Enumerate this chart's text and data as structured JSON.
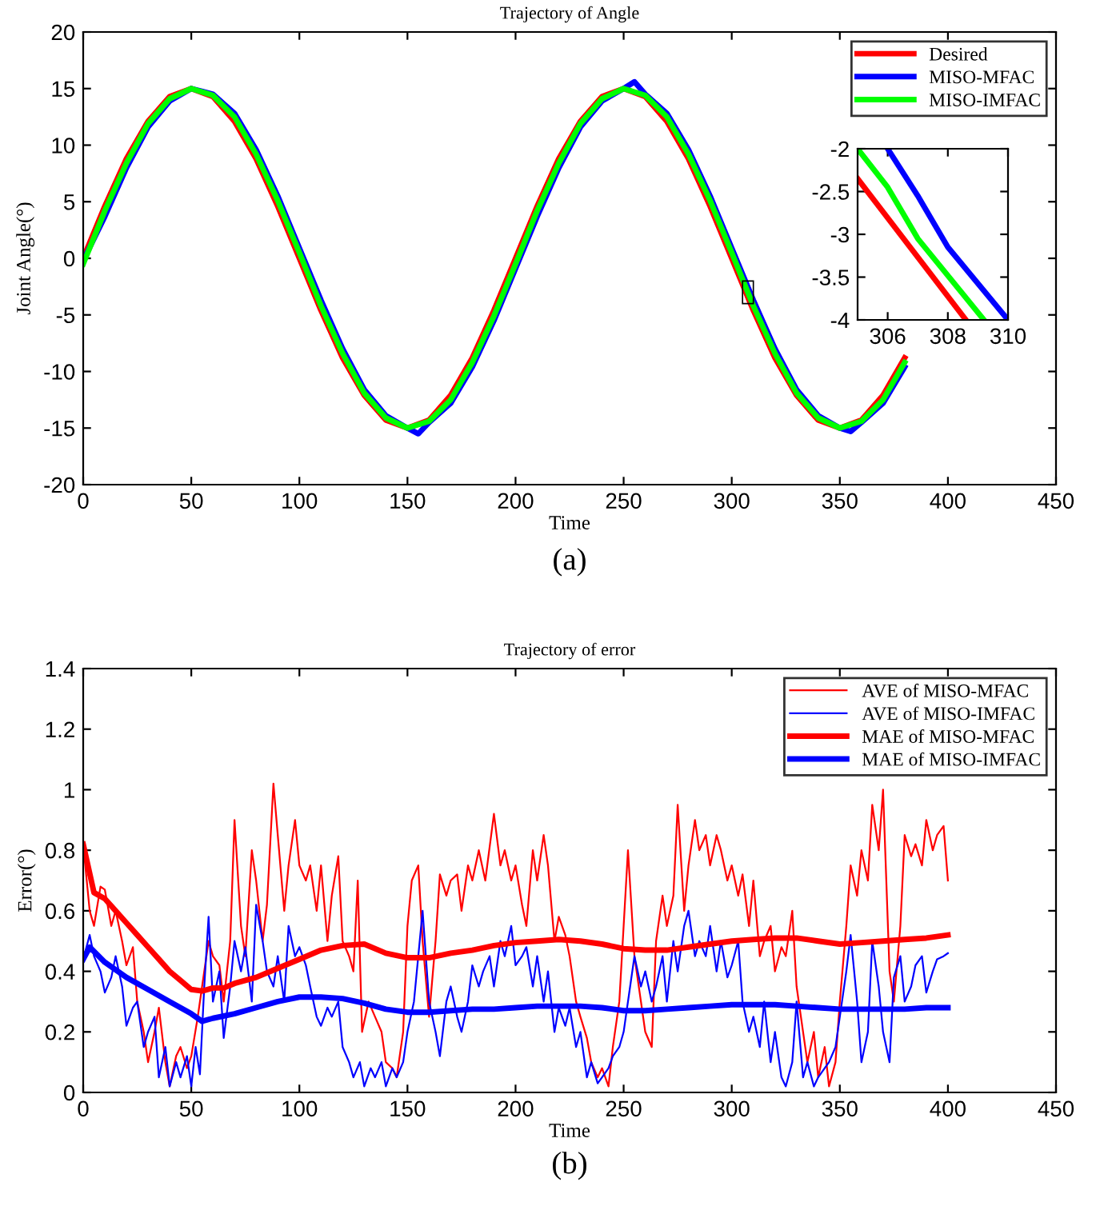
{
  "chart_data": [
    {
      "type": "line",
      "title": "Trajectory of Angle",
      "xlabel": "Time",
      "ylabel": "Joint Angle(°)",
      "annotations": [
        "(a)"
      ],
      "xlim": [
        0,
        450
      ],
      "ylim": [
        -20,
        20
      ],
      "xticks": [
        0,
        50,
        100,
        150,
        200,
        250,
        300,
        350,
        400,
        450
      ],
      "yticks": [
        -20,
        -15,
        -10,
        -5,
        0,
        5,
        10,
        15,
        20
      ],
      "grid": false,
      "legend": "top right",
      "line_style": "solid",
      "marker": "none",
      "series": [
        {
          "name": "Desired",
          "color": "#ff0000",
          "x": [
            0,
            10,
            20,
            30,
            40,
            50,
            60,
            70,
            80,
            90,
            100,
            110,
            120,
            130,
            140,
            150,
            160,
            170,
            180,
            190,
            200,
            210,
            220,
            230,
            240,
            250,
            260,
            270,
            280,
            290,
            300,
            310,
            320,
            330,
            340,
            350,
            360,
            370,
            380
          ],
          "values": [
            0,
            4.6,
            8.8,
            12.1,
            14.3,
            15,
            14.3,
            12.1,
            8.8,
            4.6,
            0,
            -4.6,
            -8.8,
            -12.1,
            -14.3,
            -15,
            -14.3,
            -12.1,
            -8.8,
            -4.6,
            0,
            4.6,
            8.8,
            12.1,
            14.3,
            15,
            14.3,
            12.1,
            8.8,
            4.6,
            0,
            -4.6,
            -8.8,
            -12.1,
            -14.3,
            -15,
            -14.3,
            -12.1,
            -8.8
          ]
        },
        {
          "name": "MISO-MFAC",
          "color": "#0000ff",
          "x": [
            0,
            10,
            20,
            30,
            40,
            50,
            60,
            70,
            80,
            90,
            100,
            110,
            120,
            130,
            140,
            150,
            155,
            160,
            170,
            180,
            190,
            200,
            210,
            220,
            230,
            240,
            250,
            255,
            260,
            270,
            280,
            290,
            300,
            310,
            320,
            330,
            340,
            350,
            355,
            360,
            370,
            380
          ],
          "values": [
            -0.2,
            3.7,
            8.0,
            11.6,
            13.9,
            15.0,
            14.5,
            12.8,
            9.6,
            5.5,
            0.9,
            -3.7,
            -8.0,
            -11.6,
            -13.9,
            -15.0,
            -15.5,
            -14.5,
            -12.8,
            -9.6,
            -5.5,
            -0.9,
            3.7,
            8.0,
            11.6,
            13.9,
            15.0,
            15.6,
            14.5,
            12.8,
            9.6,
            5.5,
            0.9,
            -3.7,
            -8.0,
            -11.6,
            -13.9,
            -15.0,
            -15.3,
            -14.5,
            -12.8,
            -9.6
          ]
        },
        {
          "name": "MISO-IMFAC",
          "color": "#00ff00",
          "x": [
            0,
            10,
            20,
            30,
            40,
            50,
            60,
            70,
            80,
            90,
            100,
            110,
            120,
            130,
            140,
            150,
            160,
            170,
            180,
            190,
            200,
            210,
            220,
            230,
            240,
            250,
            260,
            270,
            280,
            290,
            300,
            310,
            320,
            330,
            340,
            350,
            360,
            370,
            380
          ],
          "values": [
            -0.5,
            4.2,
            8.4,
            11.9,
            14.1,
            15.0,
            14.4,
            12.5,
            9.2,
            5.1,
            0.5,
            -4.2,
            -8.4,
            -11.9,
            -14.1,
            -15.0,
            -14.4,
            -12.5,
            -9.2,
            -5.1,
            -0.5,
            4.2,
            8.4,
            11.9,
            14.1,
            15.0,
            14.4,
            12.5,
            9.2,
            5.1,
            0.5,
            -4.2,
            -8.4,
            -11.9,
            -14.1,
            -15.0,
            -14.4,
            -12.5,
            -9.2
          ]
        }
      ]
    },
    {
      "type": "line",
      "xlim": [
        305,
        310
      ],
      "ylim": [
        -4,
        -2
      ],
      "xticks": [
        306,
        308,
        310
      ],
      "yticks": [
        -4,
        -3.5,
        -3,
        -2.5,
        -2
      ],
      "grid": false,
      "line_style": "solid",
      "marker": "none",
      "series": [
        {
          "color": "#ff0000",
          "x": [
            305,
            308.6
          ],
          "values": [
            -2.35,
            -4
          ]
        },
        {
          "color": "#0000ff",
          "x": [
            306,
            307,
            308,
            310
          ],
          "values": [
            -2,
            -2.55,
            -3.15,
            -4
          ]
        },
        {
          "color": "#00ff00",
          "x": [
            305,
            306,
            307,
            309.2
          ],
          "values": [
            -2,
            -2.45,
            -3.05,
            -4
          ]
        }
      ]
    },
    {
      "type": "line",
      "title": "Trajectory of error",
      "xlabel": "Time",
      "ylabel": "Error(°)",
      "annotations": [
        "(b)"
      ],
      "xlim": [
        0,
        450
      ],
      "ylim": [
        0,
        1.4
      ],
      "xticks": [
        0,
        50,
        100,
        150,
        200,
        250,
        300,
        350,
        400,
        450
      ],
      "yticks": [
        0,
        0.2,
        0.4,
        0.6,
        0.8,
        1,
        1.2,
        1.4
      ],
      "grid": false,
      "legend": "top right",
      "line_style": "solid",
      "marker": "none",
      "series": [
        {
          "name": "AVE of MISO-MFAC",
          "color": "#ff0000",
          "x": [
            0,
            3,
            5,
            8,
            10,
            13,
            15,
            18,
            20,
            23,
            25,
            28,
            30,
            33,
            35,
            38,
            40,
            43,
            45,
            48,
            50,
            53,
            55,
            58,
            60,
            63,
            65,
            68,
            70,
            73,
            75,
            78,
            80,
            83,
            85,
            88,
            90,
            93,
            95,
            98,
            100,
            103,
            105,
            108,
            110,
            113,
            115,
            118,
            120,
            123,
            125,
            127,
            129,
            132,
            135,
            138,
            140,
            143,
            145,
            148,
            150,
            152,
            155,
            157,
            160,
            163,
            165,
            168,
            170,
            173,
            175,
            178,
            180,
            183,
            186,
            190,
            193,
            195,
            198,
            200,
            203,
            205,
            208,
            210,
            213,
            215,
            218,
            220,
            223,
            225,
            228,
            230,
            233,
            235,
            238,
            240,
            243,
            245,
            248,
            250,
            252,
            255,
            258,
            260,
            263,
            265,
            268,
            270,
            273,
            275,
            278,
            280,
            283,
            285,
            288,
            290,
            293,
            295,
            298,
            300,
            303,
            305,
            308,
            310,
            313,
            315,
            318,
            320,
            323,
            325,
            328,
            330,
            333,
            335,
            338,
            340,
            343,
            345,
            348,
            350,
            353,
            355,
            358,
            360,
            363,
            365,
            368,
            370,
            373,
            375,
            378,
            380,
            383,
            385,
            388,
            390,
            393,
            395,
            398,
            400
          ],
          "values": [
            0.82,
            0.6,
            0.55,
            0.68,
            0.67,
            0.55,
            0.6,
            0.5,
            0.42,
            0.48,
            0.3,
            0.2,
            0.1,
            0.2,
            0.28,
            0.1,
            0.02,
            0.12,
            0.15,
            0.08,
            0.12,
            0.25,
            0.35,
            0.5,
            0.45,
            0.42,
            0.3,
            0.5,
            0.9,
            0.55,
            0.45,
            0.8,
            0.7,
            0.5,
            0.62,
            1.02,
            0.85,
            0.6,
            0.75,
            0.9,
            0.75,
            0.7,
            0.75,
            0.6,
            0.75,
            0.5,
            0.65,
            0.78,
            0.5,
            0.45,
            0.4,
            0.7,
            0.2,
            0.3,
            0.25,
            0.2,
            0.1,
            0.08,
            0.05,
            0.2,
            0.55,
            0.7,
            0.75,
            0.5,
            0.25,
            0.5,
            0.72,
            0.65,
            0.7,
            0.72,
            0.6,
            0.75,
            0.7,
            0.8,
            0.7,
            0.92,
            0.75,
            0.8,
            0.7,
            0.75,
            0.62,
            0.55,
            0.8,
            0.7,
            0.85,
            0.75,
            0.5,
            0.58,
            0.52,
            0.45,
            0.3,
            0.25,
            0.18,
            0.1,
            0.05,
            0.08,
            0.02,
            0.15,
            0.3,
            0.55,
            0.8,
            0.45,
            0.3,
            0.2,
            0.15,
            0.5,
            0.65,
            0.55,
            0.65,
            0.95,
            0.6,
            0.75,
            0.9,
            0.8,
            0.85,
            0.75,
            0.85,
            0.8,
            0.7,
            0.75,
            0.65,
            0.72,
            0.55,
            0.7,
            0.45,
            0.5,
            0.55,
            0.4,
            0.48,
            0.45,
            0.6,
            0.35,
            0.2,
            0.1,
            0.2,
            0.05,
            0.15,
            0.02,
            0.1,
            0.3,
            0.55,
            0.75,
            0.65,
            0.8,
            0.7,
            0.95,
            0.8,
            1.0,
            0.4,
            0.3,
            0.55,
            0.85,
            0.78,
            0.82,
            0.75,
            0.9,
            0.8,
            0.85,
            0.88,
            0.7
          ]
        },
        {
          "name": "AVE of MISO-IMFAC",
          "color": "#0000ff",
          "x": [
            0,
            3,
            5,
            8,
            10,
            13,
            15,
            18,
            20,
            23,
            25,
            28,
            30,
            33,
            35,
            38,
            40,
            43,
            45,
            48,
            50,
            52,
            54,
            56,
            58,
            60,
            63,
            65,
            68,
            70,
            73,
            75,
            78,
            80,
            83,
            85,
            88,
            90,
            93,
            95,
            98,
            100,
            103,
            105,
            108,
            110,
            113,
            115,
            118,
            120,
            123,
            125,
            128,
            130,
            133,
            135,
            138,
            140,
            143,
            145,
            148,
            150,
            153,
            155,
            157,
            160,
            163,
            165,
            168,
            170,
            173,
            175,
            178,
            180,
            183,
            185,
            188,
            190,
            193,
            195,
            198,
            200,
            203,
            205,
            208,
            210,
            213,
            215,
            218,
            220,
            223,
            225,
            228,
            230,
            233,
            235,
            238,
            240,
            243,
            245,
            248,
            250,
            253,
            255,
            258,
            260,
            263,
            265,
            268,
            270,
            273,
            275,
            278,
            280,
            283,
            285,
            288,
            290,
            293,
            295,
            298,
            300,
            303,
            305,
            308,
            310,
            313,
            315,
            318,
            320,
            323,
            325,
            328,
            330,
            333,
            335,
            338,
            340,
            343,
            345,
            348,
            350,
            353,
            355,
            358,
            360,
            363,
            365,
            368,
            370,
            373,
            375,
            378,
            380,
            383,
            385,
            388,
            390,
            393,
            395,
            398,
            400
          ],
          "values": [
            0.44,
            0.52,
            0.45,
            0.4,
            0.33,
            0.38,
            0.45,
            0.35,
            0.22,
            0.28,
            0.3,
            0.15,
            0.2,
            0.25,
            0.05,
            0.15,
            0.02,
            0.1,
            0.05,
            0.12,
            0.02,
            0.15,
            0.06,
            0.35,
            0.58,
            0.3,
            0.4,
            0.18,
            0.35,
            0.5,
            0.4,
            0.48,
            0.3,
            0.62,
            0.5,
            0.4,
            0.35,
            0.45,
            0.3,
            0.55,
            0.45,
            0.48,
            0.42,
            0.35,
            0.25,
            0.22,
            0.28,
            0.25,
            0.3,
            0.15,
            0.1,
            0.05,
            0.1,
            0.02,
            0.08,
            0.05,
            0.1,
            0.02,
            0.08,
            0.05,
            0.1,
            0.2,
            0.3,
            0.45,
            0.6,
            0.3,
            0.2,
            0.12,
            0.3,
            0.35,
            0.25,
            0.2,
            0.3,
            0.42,
            0.35,
            0.4,
            0.45,
            0.35,
            0.5,
            0.45,
            0.55,
            0.42,
            0.45,
            0.48,
            0.35,
            0.45,
            0.3,
            0.4,
            0.2,
            0.28,
            0.22,
            0.28,
            0.15,
            0.2,
            0.05,
            0.1,
            0.03,
            0.05,
            0.08,
            0.12,
            0.15,
            0.2,
            0.35,
            0.45,
            0.35,
            0.4,
            0.3,
            0.35,
            0.45,
            0.3,
            0.5,
            0.4,
            0.55,
            0.6,
            0.45,
            0.5,
            0.45,
            0.55,
            0.4,
            0.5,
            0.38,
            0.42,
            0.5,
            0.3,
            0.2,
            0.25,
            0.15,
            0.3,
            0.1,
            0.2,
            0.05,
            0.02,
            0.1,
            0.3,
            0.05,
            0.1,
            0.02,
            0.05,
            0.08,
            0.1,
            0.15,
            0.25,
            0.4,
            0.52,
            0.3,
            0.1,
            0.2,
            0.5,
            0.35,
            0.2,
            0.1,
            0.38,
            0.45,
            0.3,
            0.35,
            0.42,
            0.45,
            0.33,
            0.4,
            0.44,
            0.45,
            0.46
          ]
        },
        {
          "name": "MAE of MISO-MFAC",
          "color": "#ff0000",
          "x": [
            0,
            5,
            10,
            15,
            20,
            25,
            30,
            35,
            40,
            45,
            50,
            55,
            60,
            65,
            70,
            75,
            80,
            90,
            100,
            110,
            120,
            130,
            140,
            150,
            160,
            170,
            180,
            190,
            200,
            210,
            220,
            230,
            240,
            250,
            260,
            270,
            280,
            290,
            300,
            310,
            320,
            330,
            340,
            350,
            360,
            370,
            380,
            390,
            400
          ],
          "values": [
            0.82,
            0.66,
            0.64,
            0.6,
            0.56,
            0.52,
            0.48,
            0.44,
            0.4,
            0.37,
            0.34,
            0.335,
            0.345,
            0.345,
            0.36,
            0.37,
            0.38,
            0.41,
            0.44,
            0.47,
            0.485,
            0.49,
            0.46,
            0.445,
            0.445,
            0.46,
            0.47,
            0.485,
            0.495,
            0.5,
            0.505,
            0.5,
            0.49,
            0.475,
            0.47,
            0.47,
            0.48,
            0.49,
            0.5,
            0.505,
            0.51,
            0.51,
            0.5,
            0.49,
            0.495,
            0.5,
            0.505,
            0.51,
            0.52
          ]
        },
        {
          "name": "MAE of MISO-IMFAC",
          "color": "#0000ff",
          "x": [
            0,
            3,
            10,
            20,
            30,
            40,
            50,
            55,
            60,
            70,
            80,
            90,
            100,
            110,
            120,
            130,
            140,
            150,
            160,
            170,
            180,
            190,
            200,
            210,
            220,
            230,
            240,
            250,
            260,
            270,
            280,
            290,
            300,
            310,
            320,
            330,
            340,
            350,
            360,
            370,
            380,
            390,
            400
          ],
          "values": [
            0.44,
            0.48,
            0.43,
            0.38,
            0.34,
            0.3,
            0.26,
            0.235,
            0.245,
            0.26,
            0.28,
            0.3,
            0.315,
            0.315,
            0.31,
            0.295,
            0.275,
            0.265,
            0.265,
            0.27,
            0.275,
            0.275,
            0.28,
            0.285,
            0.285,
            0.285,
            0.28,
            0.27,
            0.27,
            0.275,
            0.28,
            0.285,
            0.29,
            0.29,
            0.29,
            0.285,
            0.28,
            0.275,
            0.275,
            0.275,
            0.275,
            0.28,
            0.28
          ]
        }
      ]
    }
  ]
}
